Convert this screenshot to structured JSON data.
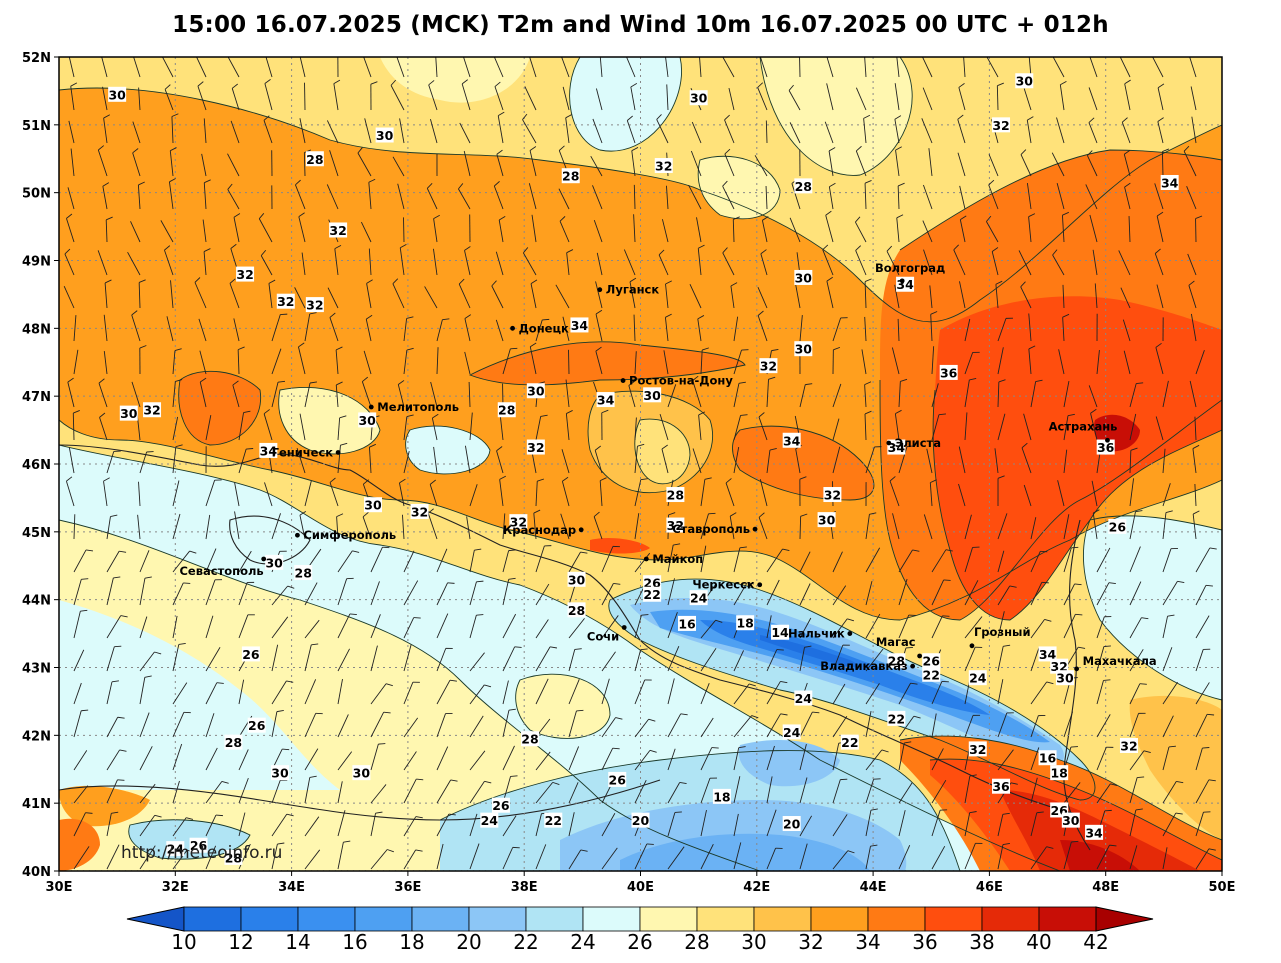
{
  "title": "15:00 16.07.2025 (MCK) T2m and Wind 10m 16.07.2025 00 UTC + 012h",
  "watermark": "http://meteoinfo.ru",
  "axes": {
    "lon_labels": [
      "30E",
      "32E",
      "34E",
      "36E",
      "38E",
      "40E",
      "42E",
      "44E",
      "46E",
      "48E",
      "50E"
    ],
    "lat_labels": [
      "52N",
      "51N",
      "50N",
      "49N",
      "48N",
      "47N",
      "46N",
      "45N",
      "44N",
      "43N",
      "42N",
      "41N",
      "40N"
    ]
  },
  "colorbar": {
    "labels": [
      "10",
      "12",
      "14",
      "16",
      "18",
      "20",
      "22",
      "24",
      "26",
      "28",
      "30",
      "32",
      "34",
      "36",
      "38",
      "40",
      "42"
    ],
    "colors": [
      "#1e6fe0",
      "#2a80ea",
      "#3a90f0",
      "#4ea0f2",
      "#6bb2f4",
      "#8cc6f6",
      "#b0e4f4",
      "#dcfbfb",
      "#fff7b0",
      "#ffe27a",
      "#ffc24a",
      "#ff9f1e",
      "#ff7a14",
      "#ff4e0e",
      "#e52a08",
      "#c80e06"
    ],
    "low_color": "#1455c8",
    "high_color": "#a80000"
  },
  "cities": [
    {
      "name": "Волгоград",
      "lon": 44.5,
      "lat": 48.7
    },
    {
      "name": "Луганск",
      "lon": 39.3,
      "lat": 48.57
    },
    {
      "name": "Донецк",
      "lon": 37.8,
      "lat": 48.0
    },
    {
      "name": "Ростов-на-Дону",
      "lon": 39.7,
      "lat": 47.23
    },
    {
      "name": "Мелитополь",
      "lon": 35.37,
      "lat": 46.84
    },
    {
      "name": "Геническ",
      "lon": 34.8,
      "lat": 46.17
    },
    {
      "name": "Элиста",
      "lon": 44.27,
      "lat": 46.31
    },
    {
      "name": "Астрахань",
      "lon": 48.03,
      "lat": 46.35
    },
    {
      "name": "Симферополь",
      "lon": 34.1,
      "lat": 44.95
    },
    {
      "name": "Севастополь",
      "lon": 33.52,
      "lat": 44.6
    },
    {
      "name": "Краснодар",
      "lon": 38.98,
      "lat": 45.03
    },
    {
      "name": "Ставрополь",
      "lon": 41.97,
      "lat": 45.04
    },
    {
      "name": "Майкоп",
      "lon": 40.1,
      "lat": 44.6
    },
    {
      "name": "Черкесск",
      "lon": 42.05,
      "lat": 44.22
    },
    {
      "name": "Сочи",
      "lon": 39.72,
      "lat": 43.59
    },
    {
      "name": "Нальчик",
      "lon": 43.6,
      "lat": 43.5
    },
    {
      "name": "Магас",
      "lon": 44.8,
      "lat": 43.17
    },
    {
      "name": "Грозный",
      "lon": 45.7,
      "lat": 43.32
    },
    {
      "name": "Владикавказ",
      "lon": 44.68,
      "lat": 43.02
    },
    {
      "name": "Махачкала",
      "lon": 47.5,
      "lat": 42.98
    }
  ],
  "contour_labels": [
    {
      "t": "30",
      "lon": 31.0,
      "lat": 51.45
    },
    {
      "t": "30",
      "lon": 41.0,
      "lat": 51.4
    },
    {
      "t": "30",
      "lon": 35.6,
      "lat": 50.85
    },
    {
      "t": "28",
      "lon": 34.4,
      "lat": 50.5
    },
    {
      "t": "32",
      "lon": 40.4,
      "lat": 50.4
    },
    {
      "t": "28",
      "lon": 38.8,
      "lat": 50.25
    },
    {
      "t": "28",
      "lon": 42.8,
      "lat": 50.1
    },
    {
      "t": "30",
      "lon": 46.6,
      "lat": 51.65
    },
    {
      "t": "32",
      "lon": 46.2,
      "lat": 51.0
    },
    {
      "t": "34",
      "lon": 49.1,
      "lat": 50.15
    },
    {
      "t": "32",
      "lon": 34.8,
      "lat": 49.45
    },
    {
      "t": "32",
      "lon": 33.2,
      "lat": 48.8
    },
    {
      "t": "32",
      "lon": 33.9,
      "lat": 48.4
    },
    {
      "t": "32",
      "lon": 34.4,
      "lat": 48.35
    },
    {
      "t": "30",
      "lon": 42.8,
      "lat": 48.75
    },
    {
      "t": "34",
      "lon": 44.55,
      "lat": 48.65
    },
    {
      "t": "34",
      "lon": 38.95,
      "lat": 48.05
    },
    {
      "t": "30",
      "lon": 42.8,
      "lat": 47.7
    },
    {
      "t": "32",
      "lon": 42.2,
      "lat": 47.45
    },
    {
      "t": "36",
      "lon": 45.3,
      "lat": 47.35
    },
    {
      "t": "30",
      "lon": 31.2,
      "lat": 46.75
    },
    {
      "t": "32",
      "lon": 31.6,
      "lat": 46.8
    },
    {
      "t": "30",
      "lon": 35.3,
      "lat": 46.65
    },
    {
      "t": "28",
      "lon": 37.7,
      "lat": 46.8
    },
    {
      "t": "30",
      "lon": 38.2,
      "lat": 47.08
    },
    {
      "t": "34",
      "lon": 39.4,
      "lat": 46.95
    },
    {
      "t": "30",
      "lon": 40.2,
      "lat": 47.02
    },
    {
      "t": "34",
      "lon": 33.6,
      "lat": 46.2
    },
    {
      "t": "32",
      "lon": 38.2,
      "lat": 46.25
    },
    {
      "t": "34",
      "lon": 42.6,
      "lat": 46.35
    },
    {
      "t": "34",
      "lon": 44.4,
      "lat": 46.25
    },
    {
      "t": "36",
      "lon": 48.0,
      "lat": 46.25
    },
    {
      "t": "28",
      "lon": 40.6,
      "lat": 45.55
    },
    {
      "t": "30",
      "lon": 35.4,
      "lat": 45.4
    },
    {
      "t": "32",
      "lon": 36.2,
      "lat": 45.3
    },
    {
      "t": "32",
      "lon": 43.3,
      "lat": 45.55
    },
    {
      "t": "30",
      "lon": 43.2,
      "lat": 45.18
    },
    {
      "t": "32",
      "lon": 40.6,
      "lat": 45.1
    },
    {
      "t": "32",
      "lon": 37.9,
      "lat": 45.15
    },
    {
      "t": "26",
      "lon": 48.2,
      "lat": 45.08
    },
    {
      "t": "30",
      "lon": 33.7,
      "lat": 44.55
    },
    {
      "t": "28",
      "lon": 34.2,
      "lat": 44.4
    },
    {
      "t": "30",
      "lon": 38.9,
      "lat": 44.3
    },
    {
      "t": "26",
      "lon": 40.2,
      "lat": 44.25
    },
    {
      "t": "22",
      "lon": 40.2,
      "lat": 44.08
    },
    {
      "t": "24",
      "lon": 41.0,
      "lat": 44.03
    },
    {
      "t": "28",
      "lon": 38.9,
      "lat": 43.85
    },
    {
      "t": "16",
      "lon": 40.8,
      "lat": 43.65
    },
    {
      "t": "18",
      "lon": 41.8,
      "lat": 43.66
    },
    {
      "t": "14",
      "lon": 42.4,
      "lat": 43.52
    },
    {
      "t": "26",
      "lon": 33.3,
      "lat": 43.2
    },
    {
      "t": "28",
      "lon": 44.4,
      "lat": 43.1
    },
    {
      "t": "26",
      "lon": 45.0,
      "lat": 43.1
    },
    {
      "t": "22",
      "lon": 45.0,
      "lat": 42.9
    },
    {
      "t": "34",
      "lon": 47.0,
      "lat": 43.2
    },
    {
      "t": "32",
      "lon": 47.2,
      "lat": 43.02
    },
    {
      "t": "30",
      "lon": 47.3,
      "lat": 42.85
    },
    {
      "t": "24",
      "lon": 45.8,
      "lat": 42.85
    },
    {
      "t": "24",
      "lon": 42.8,
      "lat": 42.55
    },
    {
      "t": "22",
      "lon": 44.4,
      "lat": 42.25
    },
    {
      "t": "24",
      "lon": 42.6,
      "lat": 42.05
    },
    {
      "t": "22",
      "lon": 43.6,
      "lat": 41.9
    },
    {
      "t": "32",
      "lon": 45.8,
      "lat": 41.8
    },
    {
      "t": "16",
      "lon": 47.0,
      "lat": 41.67
    },
    {
      "t": "18",
      "lon": 47.2,
      "lat": 41.45
    },
    {
      "t": "32",
      "lon": 48.4,
      "lat": 41.85
    },
    {
      "t": "36",
      "lon": 46.2,
      "lat": 41.25
    },
    {
      "t": "26",
      "lon": 33.4,
      "lat": 42.15
    },
    {
      "t": "28",
      "lon": 33.0,
      "lat": 41.9
    },
    {
      "t": "28",
      "lon": 38.1,
      "lat": 41.95
    },
    {
      "t": "30",
      "lon": 33.8,
      "lat": 41.45
    },
    {
      "t": "30",
      "lon": 35.2,
      "lat": 41.45
    },
    {
      "t": "26",
      "lon": 39.6,
      "lat": 41.35
    },
    {
      "t": "18",
      "lon": 41.4,
      "lat": 41.1
    },
    {
      "t": "26",
      "lon": 37.6,
      "lat": 40.97
    },
    {
      "t": "24",
      "lon": 37.4,
      "lat": 40.75
    },
    {
      "t": "22",
      "lon": 38.5,
      "lat": 40.75
    },
    {
      "t": "20",
      "lon": 40.0,
      "lat": 40.75
    },
    {
      "t": "20",
      "lon": 42.6,
      "lat": 40.7
    },
    {
      "t": "26",
      "lon": 47.2,
      "lat": 40.9
    },
    {
      "t": "30",
      "lon": 47.4,
      "lat": 40.75
    },
    {
      "t": "34",
      "lon": 47.8,
      "lat": 40.57
    },
    {
      "t": "24",
      "lon": 32.0,
      "lat": 40.33
    },
    {
      "t": "26",
      "lon": 32.4,
      "lat": 40.38
    },
    {
      "t": "28",
      "lon": 33.0,
      "lat": 40.2
    }
  ]
}
